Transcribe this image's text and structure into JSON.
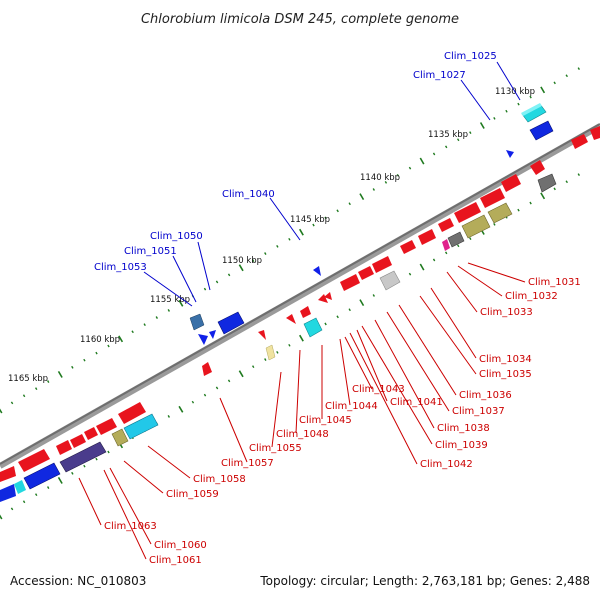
{
  "header": {
    "title": "Chlorobium limicola DSM 245, complete genome"
  },
  "footer": {
    "accession": "Accession: NC_010803",
    "summary": "Topology: circular; Length: 2,763,181 bp; Genes: 2,488"
  },
  "scale": {
    "ticks": [
      "1130 kbp",
      "1135 kbp",
      "1140 kbp",
      "1145 kbp",
      "1150 kbp",
      "1155 kbp",
      "1160 kbp",
      "1165 kbp"
    ]
  },
  "labels": {
    "plus": [
      "Clim_1025",
      "Clim_1027",
      "Clim_1040",
      "Clim_1050",
      "Clim_1051",
      "Clim_1053"
    ],
    "minus": [
      "Clim_1031",
      "Clim_1032",
      "Clim_1033",
      "Clim_1034",
      "Clim_1035",
      "Clim_1036",
      "Clim_1037",
      "Clim_1038",
      "Clim_1039",
      "Clim_1041",
      "Clim_1042",
      "Clim_1043",
      "Clim_1044",
      "Clim_1045",
      "Clim_1048",
      "Clim_1055",
      "Clim_1057",
      "Clim_1058",
      "Clim_1059",
      "Clim_1060",
      "Clim_1061",
      "Clim_1063"
    ]
  },
  "colors": {
    "minus_gene": "#e8141e",
    "plus_gene": "#0a14e6",
    "backbone": "#7a7a7a",
    "tick": "#1f7a1f",
    "label_red": "#cc0000",
    "label_blue": "#0000cc"
  }
}
